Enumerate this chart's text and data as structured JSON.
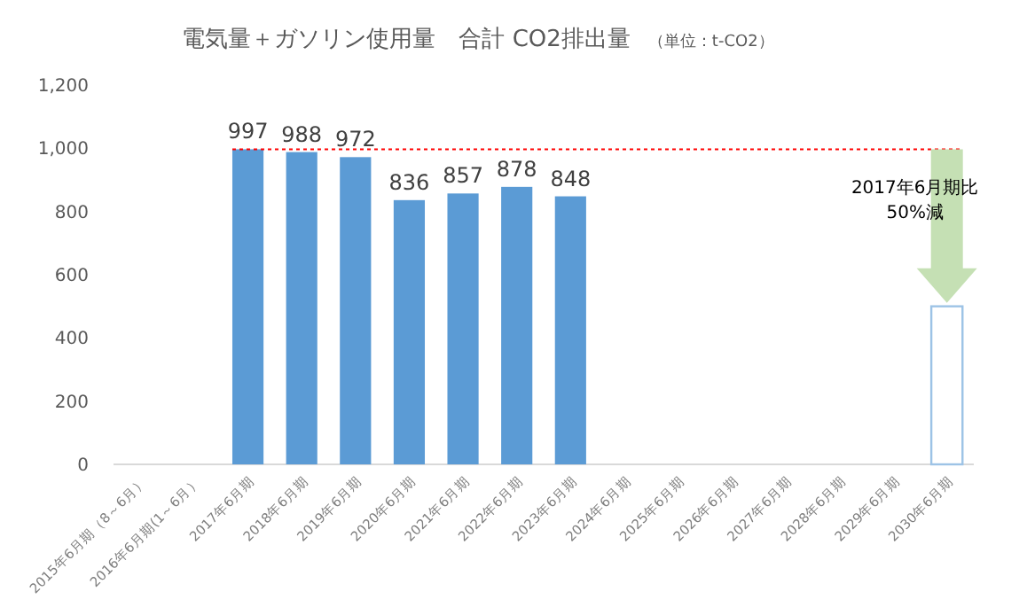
{
  "chart_data": {
    "type": "bar",
    "title": "電気量＋ガソリン使用量　合計 CO2排出量",
    "subtitle": "（単位：t-CO2）",
    "categories": [
      "2015年6月期（8～6月）",
      "2016年6月期(1～6月）",
      "2017年6月期",
      "2018年6月期",
      "2019年6月期",
      "2020年6月期",
      "2021年6月期",
      "2022年6月期",
      "2023年6月期",
      "2024年6月期",
      "2025年6月期",
      "2026年6月期",
      "2027年6月期",
      "2028年6月期",
      "2029年6月期",
      "2030年6月期"
    ],
    "series": [
      {
        "color": "#5b9bd5",
        "values": [
          null,
          null,
          997,
          988,
          972,
          836,
          857,
          878,
          848,
          null,
          null,
          null,
          null,
          null,
          null,
          null
        ],
        "value_labels": [
          null,
          null,
          "997",
          "988",
          "972",
          "836",
          "857",
          "878",
          "848",
          null,
          null,
          null,
          null,
          null,
          null,
          null
        ]
      },
      {
        "type": "bar",
        "color": "#9dc3e6",
        "values": [
          null,
          null,
          null,
          null,
          null,
          null,
          null,
          null,
          null,
          null,
          null,
          null,
          null,
          null,
          null,
          500
        ]
      }
    ],
    "ylim": [
      0,
      1200
    ],
    "yticks": [
      0,
      {
        "value": 200,
        "label": "200"
      },
      {
        "value": 400,
        "label": "400"
      },
      {
        "value": 600,
        "label": "600"
      },
      {
        "value": 800,
        "label": "800"
      },
      {
        "value": 1000,
        "label": "1,000"
      },
      {
        "value": 1200,
        "label": "1,200"
      }
    ],
    "ref_lines": [
      {
        "axis": "y",
        "value": 997,
        "color": "#ff0000",
        "line_style": "dotted"
      }
    ],
    "annotations": [
      "2017年6月期比\n50%減"
    ],
    "grid": false
  }
}
